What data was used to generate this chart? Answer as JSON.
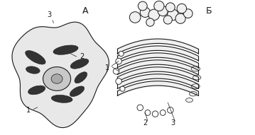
{
  "title_A": "А",
  "title_B": "Б",
  "bg_color": "#ffffff",
  "fig_width": 3.59,
  "fig_height": 1.91,
  "dpi": 100,
  "label_A1": "1",
  "label_A2": "2",
  "label_A3": "3",
  "label_B1": "1",
  "label_B2": "2",
  "label_B3": "3",
  "draw_color": "#1a1a1a",
  "fill_cell": "#e8e8e8",
  "fill_nucleus": "#c8c8c8",
  "fill_golgi": "#f0f0f0"
}
